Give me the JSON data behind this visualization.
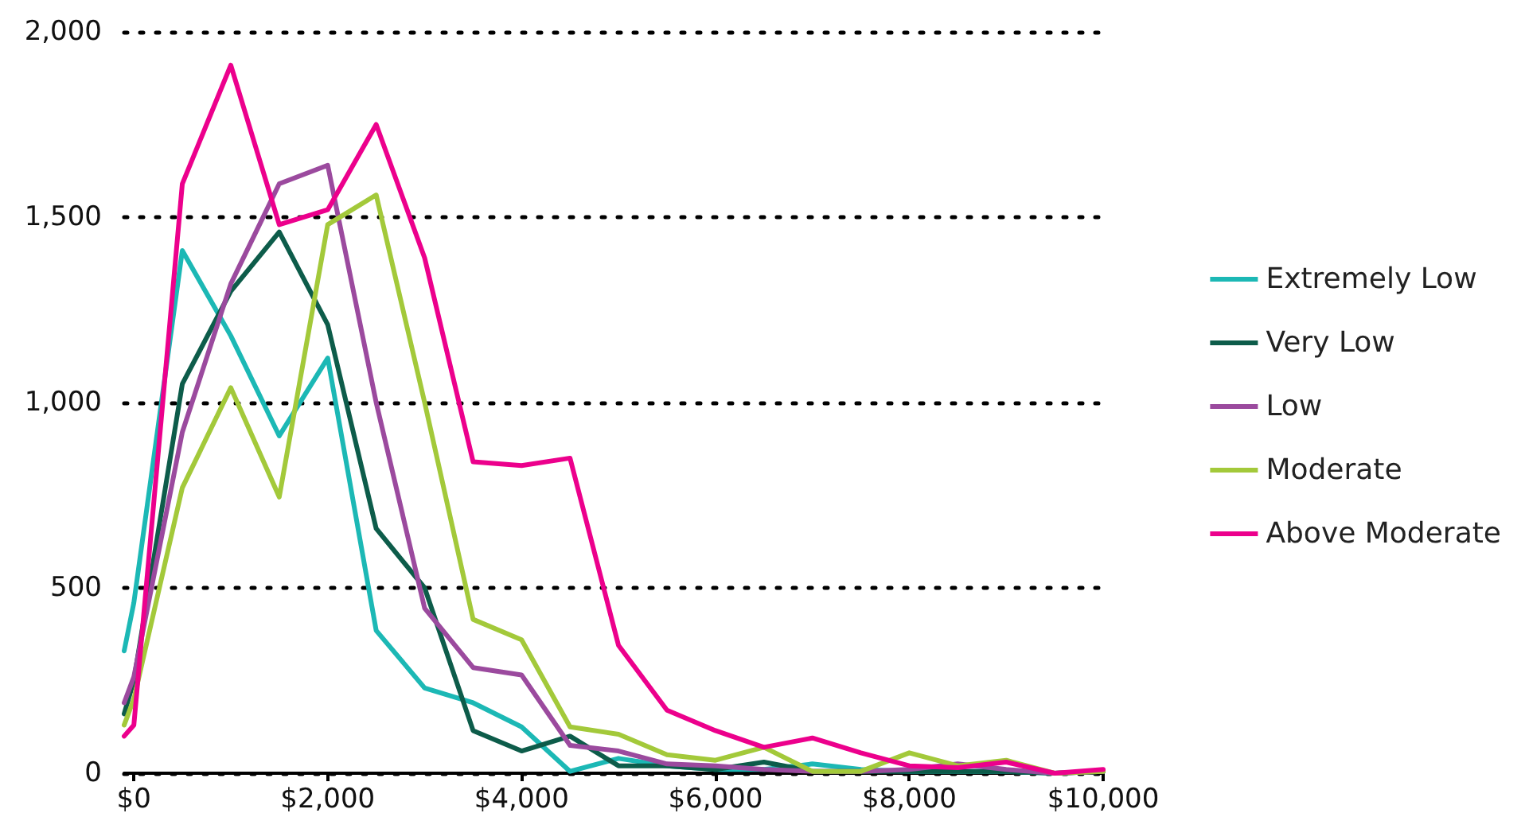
{
  "chart_data": {
    "type": "line",
    "x": [
      -100,
      0,
      500,
      1000,
      1500,
      2000,
      2500,
      3000,
      3500,
      4000,
      4500,
      5000,
      5500,
      6000,
      6500,
      7000,
      7500,
      8000,
      8500,
      9000,
      9500,
      10000
    ],
    "xlim": [
      -100,
      10000
    ],
    "xticks": [
      {
        "value": 0,
        "label": "$0"
      },
      {
        "value": 2000,
        "label": "$2,000"
      },
      {
        "value": 4000,
        "label": "$4,000"
      },
      {
        "value": 6000,
        "label": "$6,000"
      },
      {
        "value": 8000,
        "label": "$8,000"
      },
      {
        "value": 10000,
        "label": "$10,000"
      }
    ],
    "ylim": [
      0,
      2000
    ],
    "yticks": [
      0,
      500,
      {
        "value": 1000,
        "label": "1,000"
      },
      {
        "value": 1500,
        "label": "1,500"
      },
      {
        "value": 2000,
        "label": "2,000"
      }
    ],
    "grid": "y",
    "legend": "right",
    "marker": "none",
    "line_style": "solid",
    "series": [
      {
        "name": "Extremely Low",
        "color": "#1cb8b5",
        "values": [
          330,
          460,
          1410,
          1180,
          910,
          1120,
          385,
          230,
          190,
          125,
          5,
          40,
          20,
          10,
          10,
          25,
          10,
          5,
          5,
          5,
          0,
          5
        ]
      },
      {
        "name": "Very Low",
        "color": "#0d5c4a",
        "values": [
          160,
          250,
          1050,
          1300,
          1460,
          1210,
          660,
          500,
          115,
          60,
          100,
          20,
          20,
          10,
          30,
          5,
          5,
          5,
          5,
          5,
          0,
          5
        ]
      },
      {
        "name": "Low",
        "color": "#9b4a9e",
        "values": [
          190,
          260,
          920,
          1320,
          1590,
          1640,
          1000,
          445,
          285,
          265,
          75,
          60,
          25,
          20,
          10,
          5,
          5,
          10,
          25,
          10,
          0,
          5
        ]
      },
      {
        "name": "Moderate",
        "color": "#a3c93a",
        "values": [
          130,
          200,
          770,
          1040,
          745,
          1480,
          1560,
          1000,
          415,
          360,
          125,
          105,
          50,
          35,
          70,
          5,
          5,
          55,
          20,
          35,
          0,
          5
        ]
      },
      {
        "name": "Above Moderate",
        "color": "#ec008c",
        "values": [
          100,
          130,
          1590,
          1910,
          1480,
          1520,
          1750,
          1390,
          840,
          830,
          850,
          345,
          170,
          115,
          70,
          95,
          55,
          20,
          15,
          30,
          0,
          10
        ]
      }
    ]
  }
}
